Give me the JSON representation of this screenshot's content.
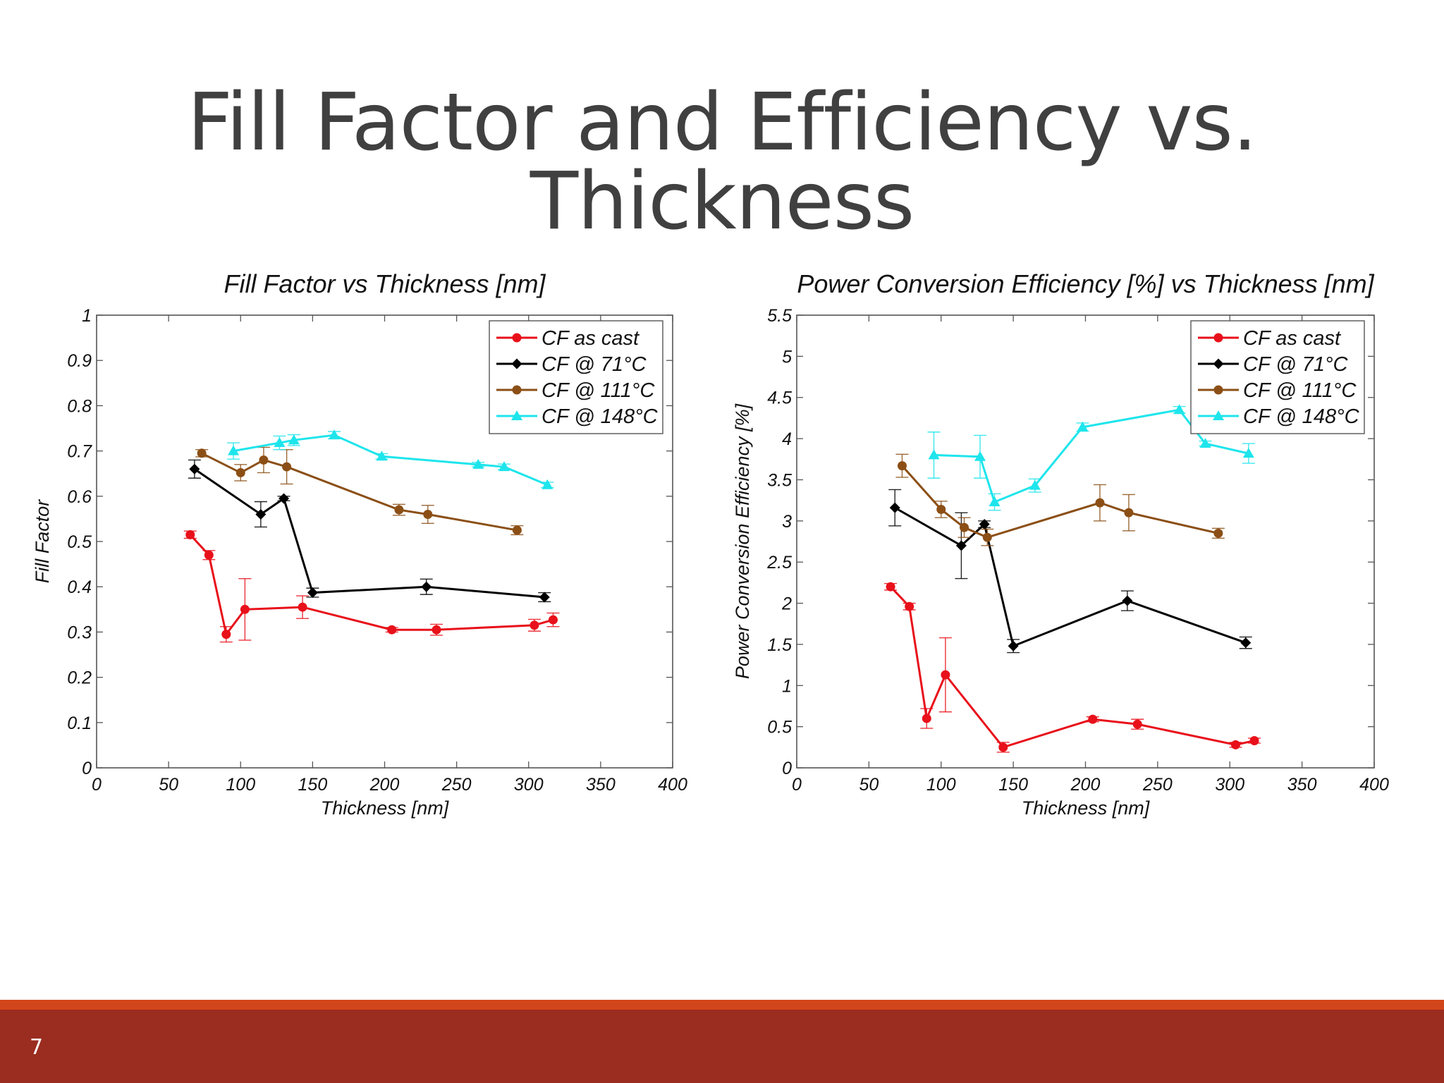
{
  "slide": {
    "title": "Fill Factor and Efficiency vs. Thickness",
    "page_number": "7"
  },
  "colors": {
    "background": "#ffffff",
    "title_text": "#404040",
    "footer_stripe": "#d2461c",
    "footer_bar": "#9b2c20"
  },
  "chart_data": [
    {
      "type": "line",
      "title": "Fill Factor vs Thickness [nm]",
      "xlabel": "Thickness [nm]",
      "ylabel": "Fill Factor",
      "xlim": [
        0,
        400
      ],
      "ylim": [
        0,
        1
      ],
      "xticks": [
        0,
        50,
        100,
        150,
        200,
        250,
        300,
        350,
        400
      ],
      "yticks": [
        0,
        0.1,
        0.2,
        0.3,
        0.4,
        0.5,
        0.6,
        0.7,
        0.8,
        0.9,
        1
      ],
      "grid": false,
      "legend_position": "top-right",
      "series": [
        {
          "name": "CF as cast",
          "color": "#e8101a",
          "marker": "circle",
          "x": [
            65,
            78,
            90,
            103,
            143,
            205,
            236,
            304,
            317
          ],
          "y": [
            0.515,
            0.47,
            0.295,
            0.35,
            0.355,
            0.305,
            0.305,
            0.315,
            0.327
          ],
          "err": [
            0.008,
            0.01,
            0.017,
            0.068,
            0.025,
            0.005,
            0.012,
            0.013,
            0.015
          ]
        },
        {
          "name": "CF @ 71°C",
          "color": "#000000",
          "marker": "diamond",
          "x": [
            68,
            114,
            130,
            150,
            229,
            311
          ],
          "y": [
            0.66,
            0.56,
            0.595,
            0.387,
            0.4,
            0.377
          ],
          "err": [
            0.02,
            0.028,
            0.005,
            0.01,
            0.017,
            0.01
          ]
        },
        {
          "name": "CF @ 111°C",
          "color": "#8b4f16",
          "marker": "circle",
          "x": [
            73,
            100,
            116,
            132,
            210,
            230,
            292
          ],
          "y": [
            0.695,
            0.652,
            0.68,
            0.665,
            0.57,
            0.56,
            0.525
          ],
          "err": [
            0.008,
            0.018,
            0.028,
            0.038,
            0.012,
            0.02,
            0.01
          ]
        },
        {
          "name": "CF @ 148°C",
          "color": "#1ee5ec",
          "marker": "triangle",
          "x": [
            95,
            127,
            137,
            165,
            198,
            265,
            283,
            313
          ],
          "y": [
            0.7,
            0.718,
            0.724,
            0.735,
            0.688,
            0.67,
            0.665,
            0.625
          ],
          "err": [
            0.018,
            0.015,
            0.012,
            0.008,
            0.006,
            0.005,
            0.006,
            0.006
          ]
        }
      ]
    },
    {
      "type": "line",
      "title": "Power Conversion Efficiency [%] vs Thickness [nm]",
      "xlabel": "Thickness [nm]",
      "ylabel": "Power Conversion Efficiency [%]",
      "xlim": [
        0,
        400
      ],
      "ylim": [
        0,
        5.5
      ],
      "xticks": [
        0,
        50,
        100,
        150,
        200,
        250,
        300,
        350,
        400
      ],
      "yticks": [
        0,
        0.5,
        1,
        1.5,
        2,
        2.5,
        3,
        3.5,
        4,
        4.5,
        5,
        5.5
      ],
      "grid": false,
      "legend_position": "top-right",
      "series": [
        {
          "name": "CF as cast",
          "color": "#e8101a",
          "marker": "circle",
          "x": [
            65,
            78,
            90,
            103,
            143,
            205,
            236,
            304,
            317
          ],
          "y": [
            2.2,
            1.96,
            0.6,
            1.13,
            0.25,
            0.59,
            0.53,
            0.28,
            0.33
          ],
          "err": [
            0.04,
            0.04,
            0.12,
            0.45,
            0.06,
            0.03,
            0.06,
            0.03,
            0.03
          ]
        },
        {
          "name": "CF @ 71°C",
          "color": "#000000",
          "marker": "diamond",
          "x": [
            68,
            114,
            130,
            150,
            229,
            311
          ],
          "y": [
            3.16,
            2.7,
            2.96,
            1.48,
            2.03,
            1.52
          ],
          "err": [
            0.22,
            0.4,
            0.04,
            0.08,
            0.12,
            0.07
          ]
        },
        {
          "name": "CF @ 111°C",
          "color": "#8b4f16",
          "marker": "circle",
          "x": [
            73,
            100,
            116,
            132,
            210,
            230,
            292
          ],
          "y": [
            3.67,
            3.14,
            2.92,
            2.8,
            3.22,
            3.1,
            2.85
          ],
          "err": [
            0.14,
            0.1,
            0.12,
            0.1,
            0.22,
            0.22,
            0.06
          ]
        },
        {
          "name": "CF @ 148°C",
          "color": "#1ee5ec",
          "marker": "triangle",
          "x": [
            95,
            127,
            137,
            165,
            198,
            265,
            283,
            313
          ],
          "y": [
            3.8,
            3.78,
            3.23,
            3.43,
            4.14,
            4.35,
            3.94,
            3.82
          ],
          "err": [
            0.28,
            0.26,
            0.1,
            0.08,
            0.05,
            0.04,
            0.03,
            0.12
          ]
        }
      ]
    }
  ]
}
